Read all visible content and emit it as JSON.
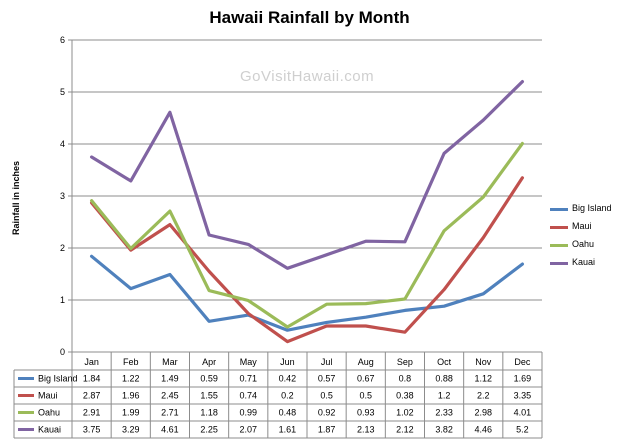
{
  "chart_data": {
    "type": "line",
    "title": "Hawaii Rainfall by Month",
    "watermark": "GoVisitHawaii.com",
    "xlabel": "",
    "ylabel": "Rainfall in inches",
    "ylim": [
      0,
      6
    ],
    "yticks": [
      "0",
      "1",
      "2",
      "3",
      "4",
      "5",
      "6"
    ],
    "grid": "horizontal",
    "legend_position": "right",
    "categories": [
      "Jan",
      "Feb",
      "Mar",
      "Apr",
      "May",
      "Jun",
      "Jul",
      "Aug",
      "Sep",
      "Oct",
      "Nov",
      "Dec"
    ],
    "series": [
      {
        "name": "Big Island",
        "color": "#4f81bd",
        "values": [
          "1.84",
          "1.22",
          "1.49",
          "0.59",
          "0.71",
          "0.42",
          "0.57",
          "0.67",
          "0.8",
          "0.88",
          "1.12",
          "1.69"
        ]
      },
      {
        "name": "Maui",
        "color": "#c0504d",
        "values": [
          "2.87",
          "1.96",
          "2.45",
          "1.55",
          "0.74",
          "0.2",
          "0.5",
          "0.5",
          "0.38",
          "1.2",
          "2.2",
          "3.35"
        ]
      },
      {
        "name": "Oahu",
        "color": "#9bbb59",
        "values": [
          "2.91",
          "1.99",
          "2.71",
          "1.18",
          "0.99",
          "0.48",
          "0.92",
          "0.93",
          "1.02",
          "2.33",
          "2.98",
          "4.01"
        ]
      },
      {
        "name": "Kauai",
        "color": "#8064a2",
        "values": [
          "3.75",
          "3.29",
          "4.61",
          "2.25",
          "2.07",
          "1.61",
          "1.87",
          "2.13",
          "2.12",
          "3.82",
          "4.46",
          "5.2"
        ]
      }
    ],
    "data_table": true
  }
}
